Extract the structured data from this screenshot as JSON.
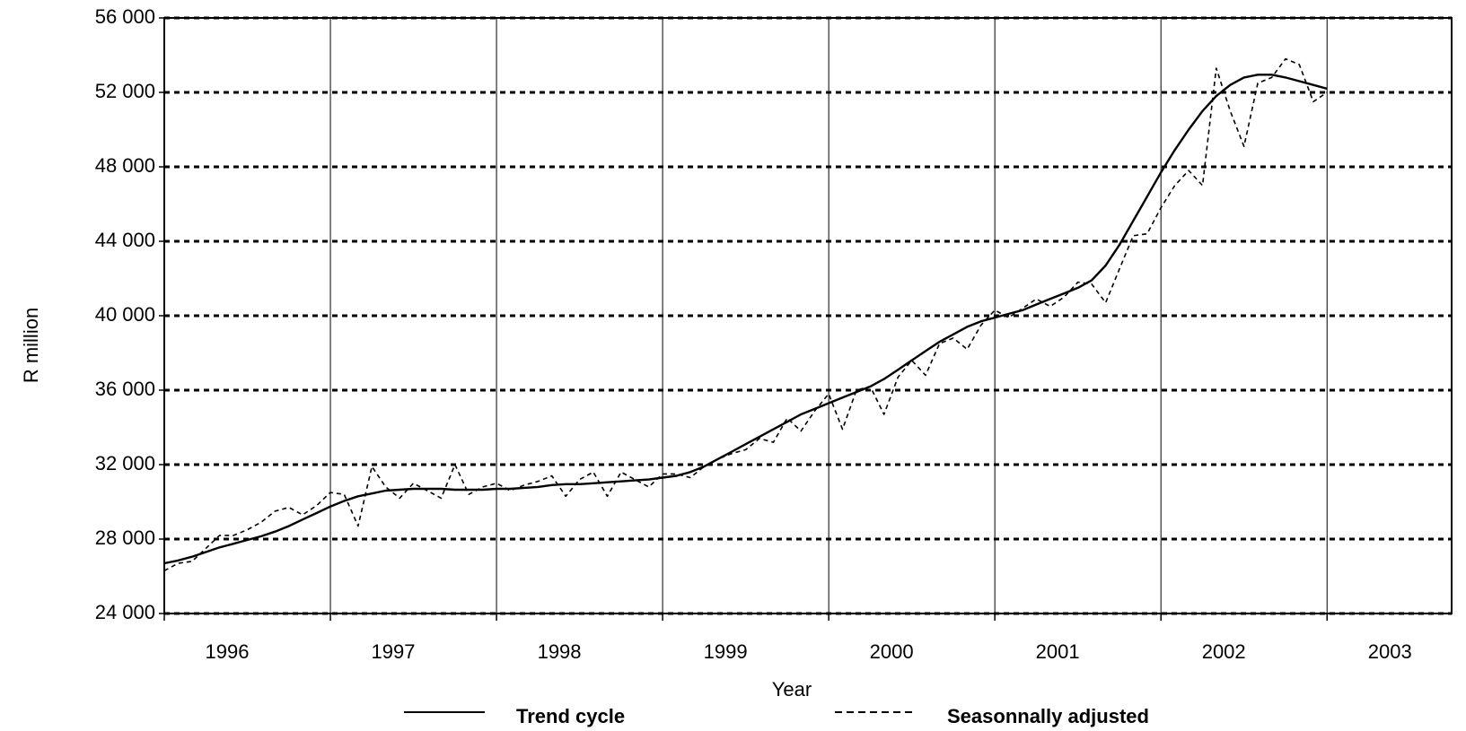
{
  "chart_data": {
    "type": "line",
    "x_label": "Year",
    "y_label": "R million",
    "x": [
      1996,
      1996.083,
      1996.167,
      1996.25,
      1996.333,
      1996.417,
      1996.5,
      1996.583,
      1996.667,
      1996.75,
      1996.833,
      1996.917,
      1997,
      1997.083,
      1997.167,
      1997.25,
      1997.333,
      1997.417,
      1997.5,
      1997.583,
      1997.667,
      1997.75,
      1997.833,
      1997.917,
      1998,
      1998.083,
      1998.167,
      1998.25,
      1998.333,
      1998.417,
      1998.5,
      1998.583,
      1998.667,
      1998.75,
      1998.833,
      1998.917,
      1999,
      1999.083,
      1999.167,
      1999.25,
      1999.333,
      1999.417,
      1999.5,
      1999.583,
      1999.667,
      1999.75,
      1999.833,
      1999.917,
      2000,
      2000.083,
      2000.167,
      2000.25,
      2000.333,
      2000.417,
      2000.5,
      2000.583,
      2000.667,
      2000.75,
      2000.833,
      2000.917,
      2001,
      2001.083,
      2001.167,
      2001.25,
      2001.333,
      2001.417,
      2001.5,
      2001.583,
      2001.667,
      2001.75,
      2001.833,
      2001.917,
      2002,
      2002.083,
      2002.167,
      2002.25,
      2002.333,
      2002.417,
      2002.5,
      2002.583,
      2002.667,
      2002.75,
      2002.833,
      2002.917,
      2003
    ],
    "series": [
      {
        "name": "Trend cycle",
        "color": "#000000",
        "dash": false,
        "values": [
          26700,
          26850,
          27050,
          27300,
          27550,
          27750,
          27950,
          28150,
          28400,
          28700,
          29050,
          29400,
          29750,
          30050,
          30300,
          30450,
          30600,
          30650,
          30700,
          30700,
          30700,
          30650,
          30650,
          30650,
          30700,
          30700,
          30750,
          30800,
          30900,
          30950,
          30950,
          31000,
          31050,
          31100,
          31150,
          31200,
          31300,
          31400,
          31600,
          31900,
          32300,
          32700,
          33100,
          33500,
          33900,
          34300,
          34700,
          35000,
          35300,
          35600,
          35900,
          36200,
          36600,
          37100,
          37600,
          38100,
          38600,
          39000,
          39400,
          39700,
          39900,
          40100,
          40300,
          40600,
          40900,
          41200,
          41500,
          41900,
          42700,
          43800,
          45100,
          46400,
          47700,
          48900,
          50000,
          51000,
          51800,
          52400,
          52800,
          52950,
          52950,
          52800,
          52600,
          52400,
          52200
        ]
      },
      {
        "name": "Seasonnally adjusted",
        "color": "#000000",
        "dash": true,
        "values": [
          26300,
          26700,
          26800,
          27500,
          28200,
          28200,
          28500,
          28900,
          29500,
          29700,
          29300,
          29800,
          30500,
          30400,
          28700,
          31900,
          30800,
          30200,
          31000,
          30600,
          30200,
          32000,
          30400,
          30800,
          31000,
          30600,
          30900,
          31100,
          31400,
          30300,
          31200,
          31600,
          30300,
          31600,
          31200,
          30800,
          31500,
          31500,
          31300,
          31900,
          32300,
          32600,
          32800,
          33400,
          33200,
          34500,
          33800,
          34900,
          35800,
          33900,
          36000,
          36200,
          34700,
          36700,
          37600,
          36800,
          38500,
          38800,
          38200,
          39500,
          40300,
          39900,
          40400,
          40900,
          40500,
          41000,
          41800,
          41700,
          40700,
          42500,
          44300,
          44400,
          45800,
          47000,
          47800,
          47000,
          53300,
          51000,
          49100,
          52500,
          52800,
          53800,
          53500,
          51500,
          52000
        ]
      }
    ],
    "xlim": [
      1996,
      2003.75
    ],
    "xticks": [
      1996,
      1997,
      1998,
      1999,
      2000,
      2001,
      2002,
      2003
    ],
    "ylim": [
      24000,
      56000
    ],
    "yticks": [
      {
        "value": 24000,
        "label": "24 000"
      },
      {
        "value": 28000,
        "label": "28 000"
      },
      {
        "value": 32000,
        "label": "32 000"
      },
      {
        "value": 36000,
        "label": "36 000"
      },
      {
        "value": 40000,
        "label": "40 000"
      },
      {
        "value": 44000,
        "label": "44 000"
      },
      {
        "value": 48000,
        "label": "48 000"
      },
      {
        "value": 52000,
        "label": "52 000"
      },
      {
        "value": 56000,
        "label": "56 000"
      }
    ],
    "grid": true,
    "legend": "bottom"
  }
}
